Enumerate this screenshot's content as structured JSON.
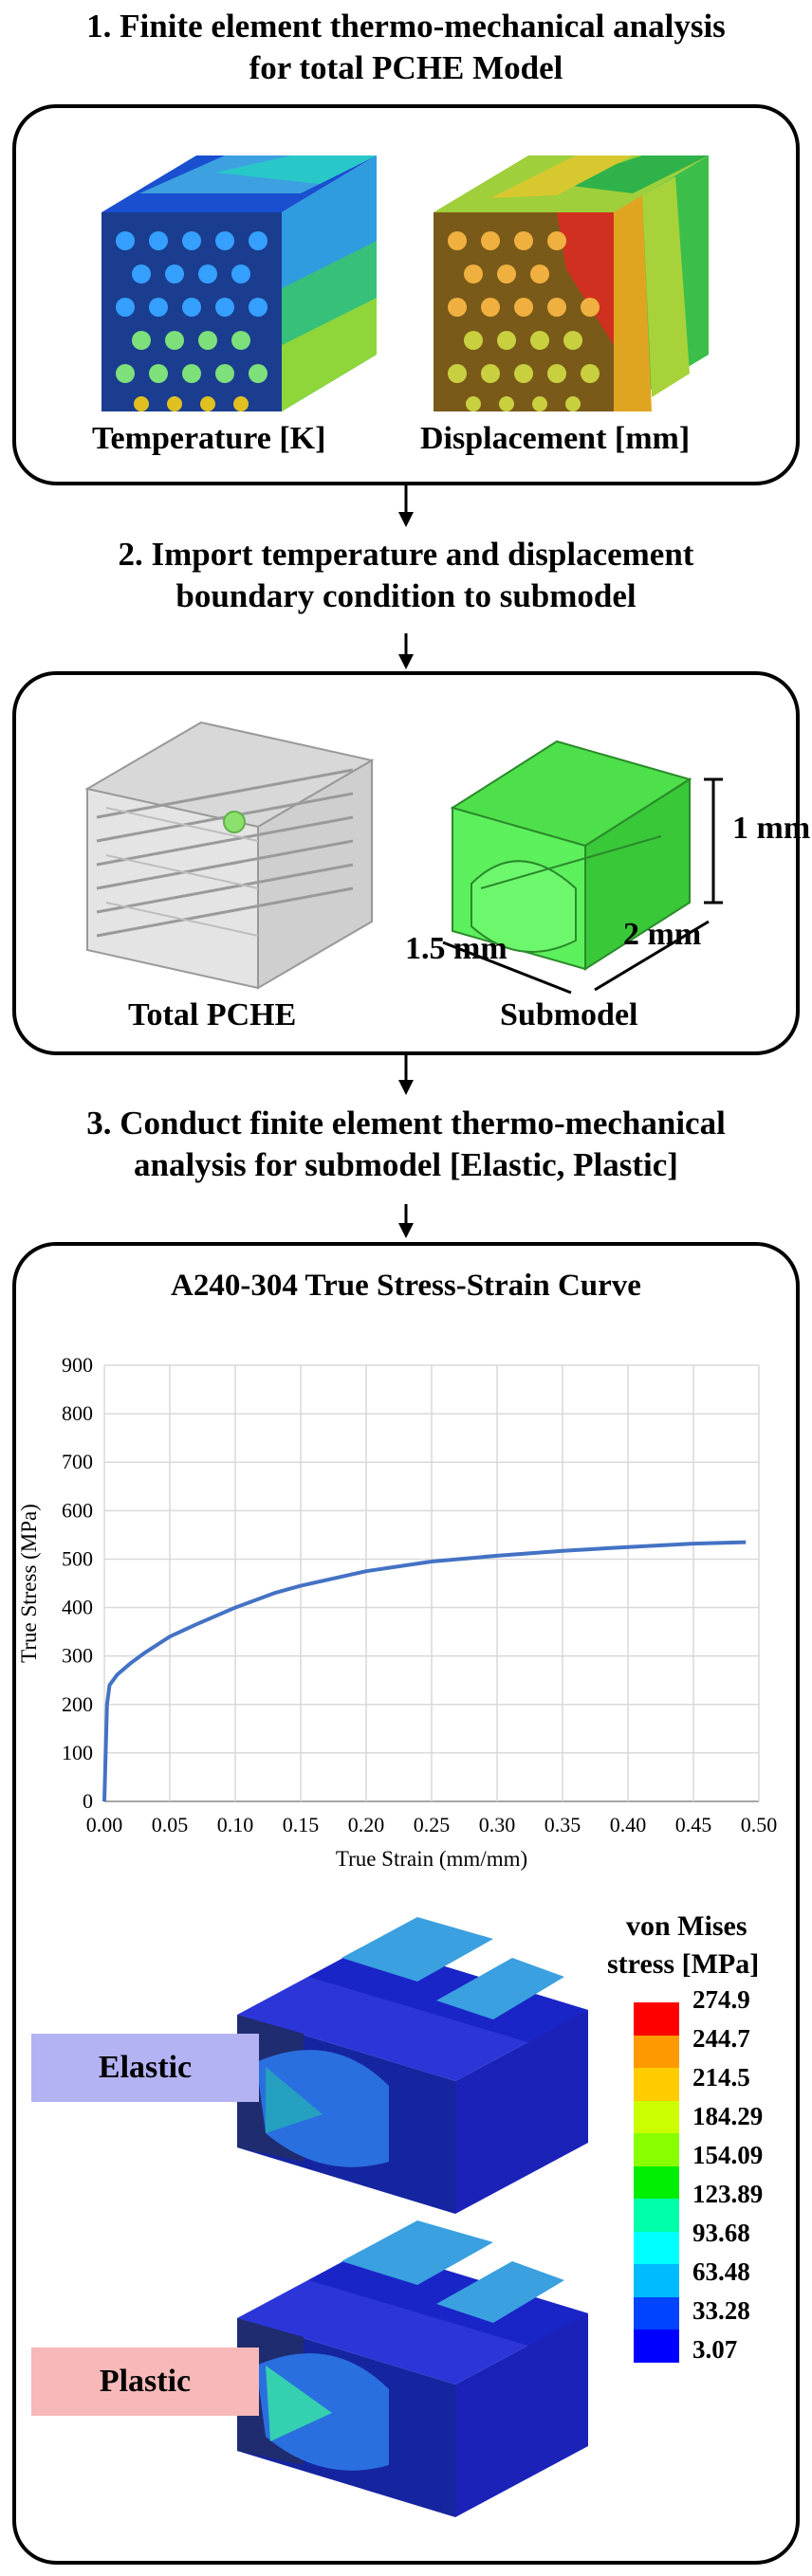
{
  "step1": {
    "title_line1": "1. Finite element thermo-mechanical analysis",
    "title_line2": "for total PCHE Model",
    "label_temperature": "Temperature [K]",
    "label_displacement": "Displacement [mm]"
  },
  "step2": {
    "title_line1": "2. Import temperature and displacement",
    "title_line2": "boundary condition to submodel",
    "label_total": "Total PCHE",
    "label_submodel": "Submodel",
    "dim_height": "1 mm",
    "dim_width": "1.5 mm",
    "dim_depth": "2 mm"
  },
  "step3": {
    "title_line1": "3. Conduct finite element thermo-mechanical",
    "title_line2": "analysis for submodel [Elastic, Plastic]",
    "badge_elastic": "Elastic",
    "badge_plastic": "Plastic",
    "legend_title_1": "von Mises",
    "legend_title_2": "stress [MPa]",
    "legend_values": [
      "274.9",
      "244.7",
      "214.5",
      "184.29",
      "154.09",
      "123.89",
      "93.68",
      "63.48",
      "33.28",
      "3.07"
    ],
    "legend_colors": [
      "#ff0000",
      "#ff9900",
      "#ffcc00",
      "#ccff00",
      "#88ff00",
      "#00ee00",
      "#00ffaa",
      "#00ffff",
      "#00bbff",
      "#0044ff",
      "#0000ff"
    ]
  },
  "chart_data": {
    "type": "line",
    "title": "A240-304 True Stress-Strain Curve",
    "xlabel": "True Strain (mm/mm)",
    "ylabel": "True Stress (MPa)",
    "xlim": [
      0,
      0.5
    ],
    "ylim": [
      0,
      900
    ],
    "xticks": [
      "0.00",
      "0.05",
      "0.10",
      "0.15",
      "0.20",
      "0.25",
      "0.30",
      "0.35",
      "0.40",
      "0.45",
      "0.50"
    ],
    "yticks": [
      "0",
      "100",
      "200",
      "300",
      "400",
      "500",
      "600",
      "700",
      "800",
      "900"
    ],
    "grid": true,
    "series": [
      {
        "color": "#4472c4",
        "x": [
          0.0,
          0.002,
          0.004,
          0.01,
          0.02,
          0.03,
          0.05,
          0.07,
          0.1,
          0.13,
          0.15,
          0.2,
          0.25,
          0.3,
          0.35,
          0.4,
          0.45,
          0.49
        ],
        "y": [
          0,
          200,
          240,
          262,
          285,
          305,
          340,
          365,
          400,
          430,
          445,
          475,
          495,
          507,
          517,
          525,
          532,
          535
        ]
      }
    ]
  }
}
